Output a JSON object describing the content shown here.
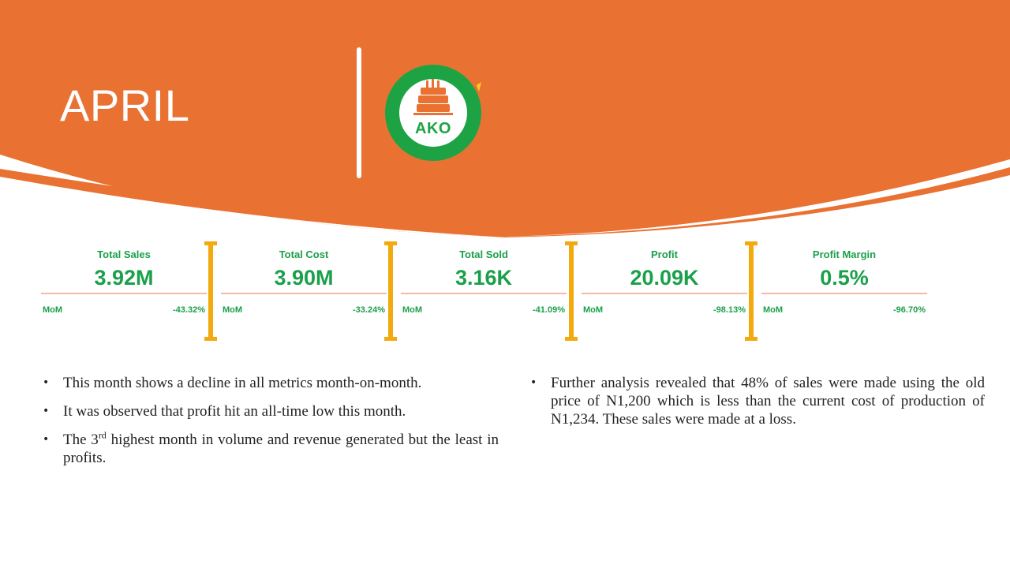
{
  "slide": {
    "month_title": "APRIL",
    "logo_text": "AKO",
    "colors": {
      "header_orange": "#e97233",
      "brand_green": "#1aa04a",
      "separator_gold": "#f2aa0f",
      "rule_peach": "#f6b9a7"
    }
  },
  "kpis": [
    {
      "title": "Total Sales",
      "value": "3.92M",
      "mom_label": "MoM",
      "mom": "-43.32%"
    },
    {
      "title": "Total Cost",
      "value": "3.90M",
      "mom_label": "MoM",
      "mom": "-33.24%"
    },
    {
      "title": "Total Sold",
      "value": "3.16K",
      "mom_label": "MoM",
      "mom": "-41.09%"
    },
    {
      "title": "Profit",
      "value": "20.09K",
      "mom_label": "MoM",
      "mom": "-98.13%"
    },
    {
      "title": "Profit Margin",
      "value": "0.5%",
      "mom_label": "MoM",
      "mom": "-96.70%"
    }
  ],
  "notes_left": [
    {
      "text": "This month shows a decline in all metrics month-on-month."
    },
    {
      "text": "It was observed that profit hit an all-time low this month."
    },
    {
      "pre": "The 3",
      "sup": "rd",
      "post": " highest month in volume and revenue generated but the least in profits."
    }
  ],
  "notes_right": [
    {
      "text": "Further analysis revealed that 48% of sales were made using the old price of N1,200 which is less than the current cost of production of N1,234. These sales were made at a loss."
    }
  ]
}
